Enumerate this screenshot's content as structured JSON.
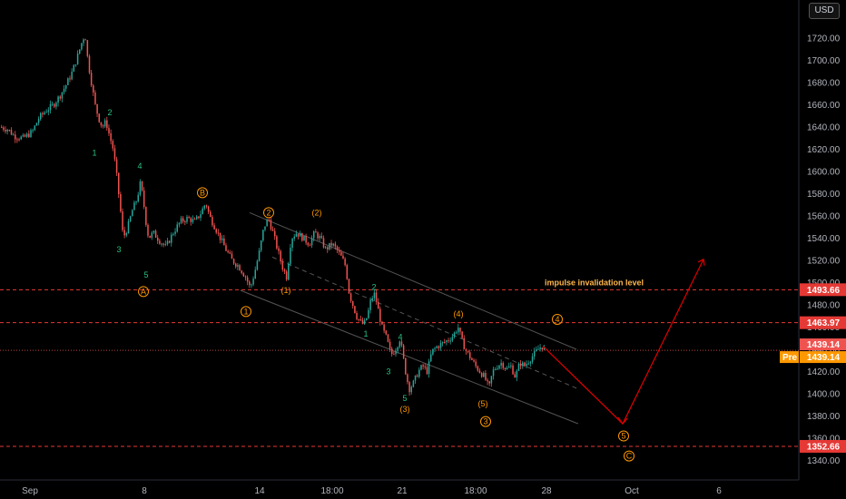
{
  "currency": "USD",
  "colors": {
    "up": "#26a69a",
    "down": "#ef5350",
    "wave_green": "#26c281",
    "wave_orange": "#ff9800",
    "level": "#e53935",
    "projection": "#e00000",
    "price_label": "#ef5350",
    "pre_label": "#ff9800"
  },
  "chart_data": {
    "type": "candlestick",
    "y_axis": {
      "min": 1330,
      "max": 1740,
      "ticks": [
        "1340.00",
        "1360.00",
        "1380.00",
        "1400.00",
        "1420.00",
        "1440.00",
        "1460.00",
        "1480.00",
        "1500.00",
        "1520.00",
        "1540.00",
        "1560.00",
        "1580.00",
        "1600.00",
        "1620.00",
        "1640.00",
        "1660.00",
        "1680.00",
        "1700.00",
        "1720.00"
      ]
    },
    "x_axis": {
      "ticks": [
        "Sep",
        "8",
        "14",
        "18:00",
        "21",
        "18:00",
        "28",
        "Oct",
        "6"
      ]
    },
    "price_path": [
      [
        0,
        1640
      ],
      [
        8,
        1638
      ],
      [
        15,
        1632
      ],
      [
        25,
        1630
      ],
      [
        35,
        1636
      ],
      [
        42,
        1648
      ],
      [
        50,
        1655
      ],
      [
        58,
        1660
      ],
      [
        65,
        1668
      ],
      [
        72,
        1678
      ],
      [
        78,
        1688
      ],
      [
        84,
        1702
      ],
      [
        90,
        1718
      ],
      [
        93,
        1724
      ],
      [
        96,
        1700
      ],
      [
        100,
        1680
      ],
      [
        104,
        1660
      ],
      [
        108,
        1648
      ],
      [
        112,
        1640
      ],
      [
        116,
        1645
      ],
      [
        120,
        1632
      ],
      [
        124,
        1620
      ],
      [
        128,
        1595
      ],
      [
        132,
        1565
      ],
      [
        135,
        1540
      ],
      [
        140,
        1550
      ],
      [
        145,
        1565
      ],
      [
        150,
        1575
      ],
      [
        154,
        1590
      ],
      [
        157,
        1575
      ],
      [
        160,
        1555
      ],
      [
        163,
        1540
      ],
      [
        168,
        1545
      ],
      [
        175,
        1538
      ],
      [
        182,
        1532
      ],
      [
        190,
        1545
      ],
      [
        198,
        1555
      ],
      [
        206,
        1558
      ],
      [
        214,
        1555
      ],
      [
        220,
        1562
      ],
      [
        226,
        1572
      ],
      [
        230,
        1560
      ],
      [
        236,
        1550
      ],
      [
        242,
        1540
      ],
      [
        248,
        1530
      ],
      [
        255,
        1520
      ],
      [
        262,
        1515
      ],
      [
        270,
        1505
      ],
      [
        275,
        1495
      ],
      [
        280,
        1510
      ],
      [
        285,
        1528
      ],
      [
        290,
        1550
      ],
      [
        295,
        1558
      ],
      [
        300,
        1545
      ],
      [
        305,
        1530
      ],
      [
        310,
        1515
      ],
      [
        315,
        1505
      ],
      [
        320,
        1540
      ],
      [
        326,
        1545
      ],
      [
        333,
        1540
      ],
      [
        340,
        1535
      ],
      [
        346,
        1545
      ],
      [
        352,
        1540
      ],
      [
        358,
        1530
      ],
      [
        365,
        1535
      ],
      [
        370,
        1530
      ],
      [
        376,
        1522
      ],
      [
        380,
        1515
      ],
      [
        384,
        1490
      ],
      [
        388,
        1480
      ],
      [
        392,
        1470
      ],
      [
        396,
        1465
      ],
      [
        400,
        1462
      ],
      [
        404,
        1470
      ],
      [
        408,
        1485
      ],
      [
        412,
        1490
      ],
      [
        416,
        1475
      ],
      [
        420,
        1460
      ],
      [
        425,
        1450
      ],
      [
        430,
        1435
      ],
      [
        435,
        1440
      ],
      [
        440,
        1450
      ],
      [
        446,
        1420
      ],
      [
        450,
        1404
      ],
      [
        455,
        1410
      ],
      [
        460,
        1420
      ],
      [
        465,
        1425
      ],
      [
        470,
        1420
      ],
      [
        475,
        1438
      ],
      [
        480,
        1442
      ],
      [
        486,
        1445
      ],
      [
        492,
        1448
      ],
      [
        498,
        1452
      ],
      [
        504,
        1460
      ],
      [
        508,
        1448
      ],
      [
        513,
        1438
      ],
      [
        518,
        1432
      ],
      [
        523,
        1425
      ],
      [
        528,
        1420
      ],
      [
        533,
        1415
      ],
      [
        538,
        1405
      ],
      [
        542,
        1420
      ],
      [
        547,
        1425
      ],
      [
        552,
        1428
      ],
      [
        557,
        1422
      ],
      [
        562,
        1425
      ],
      [
        567,
        1415
      ],
      [
        572,
        1428
      ],
      [
        577,
        1425
      ],
      [
        582,
        1430
      ],
      [
        587,
        1435
      ],
      [
        592,
        1440
      ],
      [
        596,
        1443
      ],
      [
        600,
        1439
      ]
    ],
    "levels": [
      {
        "name": "impulse invalidation",
        "price": 1493.66,
        "label": "1493.66"
      },
      {
        "name": "level-2",
        "price": 1463.97,
        "label": "1463.97"
      },
      {
        "name": "level-3",
        "price": 1352.66,
        "label": "1352.66"
      }
    ],
    "current_price": {
      "price": 1439.14,
      "label": "1439.14"
    },
    "pre_price": {
      "tag": "Pre",
      "label": "1439.14"
    },
    "annotations": [
      {
        "text": "impulse invalidation level",
        "price": 1493.66
      }
    ],
    "waves": [
      {
        "label": "2",
        "x": 121,
        "price": 1653,
        "style": "green"
      },
      {
        "label": "1",
        "x": 104,
        "price": 1617,
        "style": "green"
      },
      {
        "label": "4",
        "x": 154,
        "price": 1605,
        "style": "green"
      },
      {
        "label": "3",
        "x": 131,
        "price": 1530,
        "style": "green"
      },
      {
        "label": "5",
        "x": 161,
        "price": 1507,
        "style": "green"
      },
      {
        "label": "A",
        "x": 158,
        "price": 1492,
        "style": "circle"
      },
      {
        "label": "B",
        "x": 223,
        "price": 1581,
        "style": "circle"
      },
      {
        "label": "2",
        "x": 296,
        "price": 1563,
        "style": "circle"
      },
      {
        "label": "(2)",
        "x": 349,
        "price": 1563,
        "style": "orange"
      },
      {
        "label": "(1)",
        "x": 315,
        "price": 1493,
        "style": "orange"
      },
      {
        "label": "1",
        "x": 271,
        "price": 1474,
        "style": "circle"
      },
      {
        "label": "2",
        "x": 412,
        "price": 1496,
        "style": "green"
      },
      {
        "label": "1",
        "x": 403,
        "price": 1454,
        "style": "green"
      },
      {
        "label": "4",
        "x": 441,
        "price": 1451,
        "style": "green"
      },
      {
        "label": "3",
        "x": 428,
        "price": 1420,
        "style": "green"
      },
      {
        "label": "5",
        "x": 446,
        "price": 1396,
        "style": "green"
      },
      {
        "label": "(3)",
        "x": 446,
        "price": 1386,
        "style": "orange"
      },
      {
        "label": "(4)",
        "x": 505,
        "price": 1472,
        "style": "orange"
      },
      {
        "label": "(5)",
        "x": 532,
        "price": 1391,
        "style": "orange"
      },
      {
        "label": "3",
        "x": 535,
        "price": 1375,
        "style": "circle"
      },
      {
        "label": "4",
        "x": 614,
        "price": 1467,
        "style": "circle"
      },
      {
        "label": "5",
        "x": 687,
        "price": 1362,
        "style": "circle"
      },
      {
        "label": "C",
        "x": 693,
        "price": 1344,
        "style": "circle"
      }
    ],
    "channel": {
      "upper": [
        [
          275,
          1563
        ],
        [
          635,
          1440
        ]
      ],
      "lower": [
        [
          265,
          1493
        ],
        [
          637,
          1373
        ]
      ],
      "mid": [
        [
          300,
          1523
        ],
        [
          635,
          1405
        ]
      ]
    },
    "projection": [
      [
        598,
        1443
      ],
      [
        686,
        1373
      ],
      [
        775,
        1521
      ]
    ]
  }
}
